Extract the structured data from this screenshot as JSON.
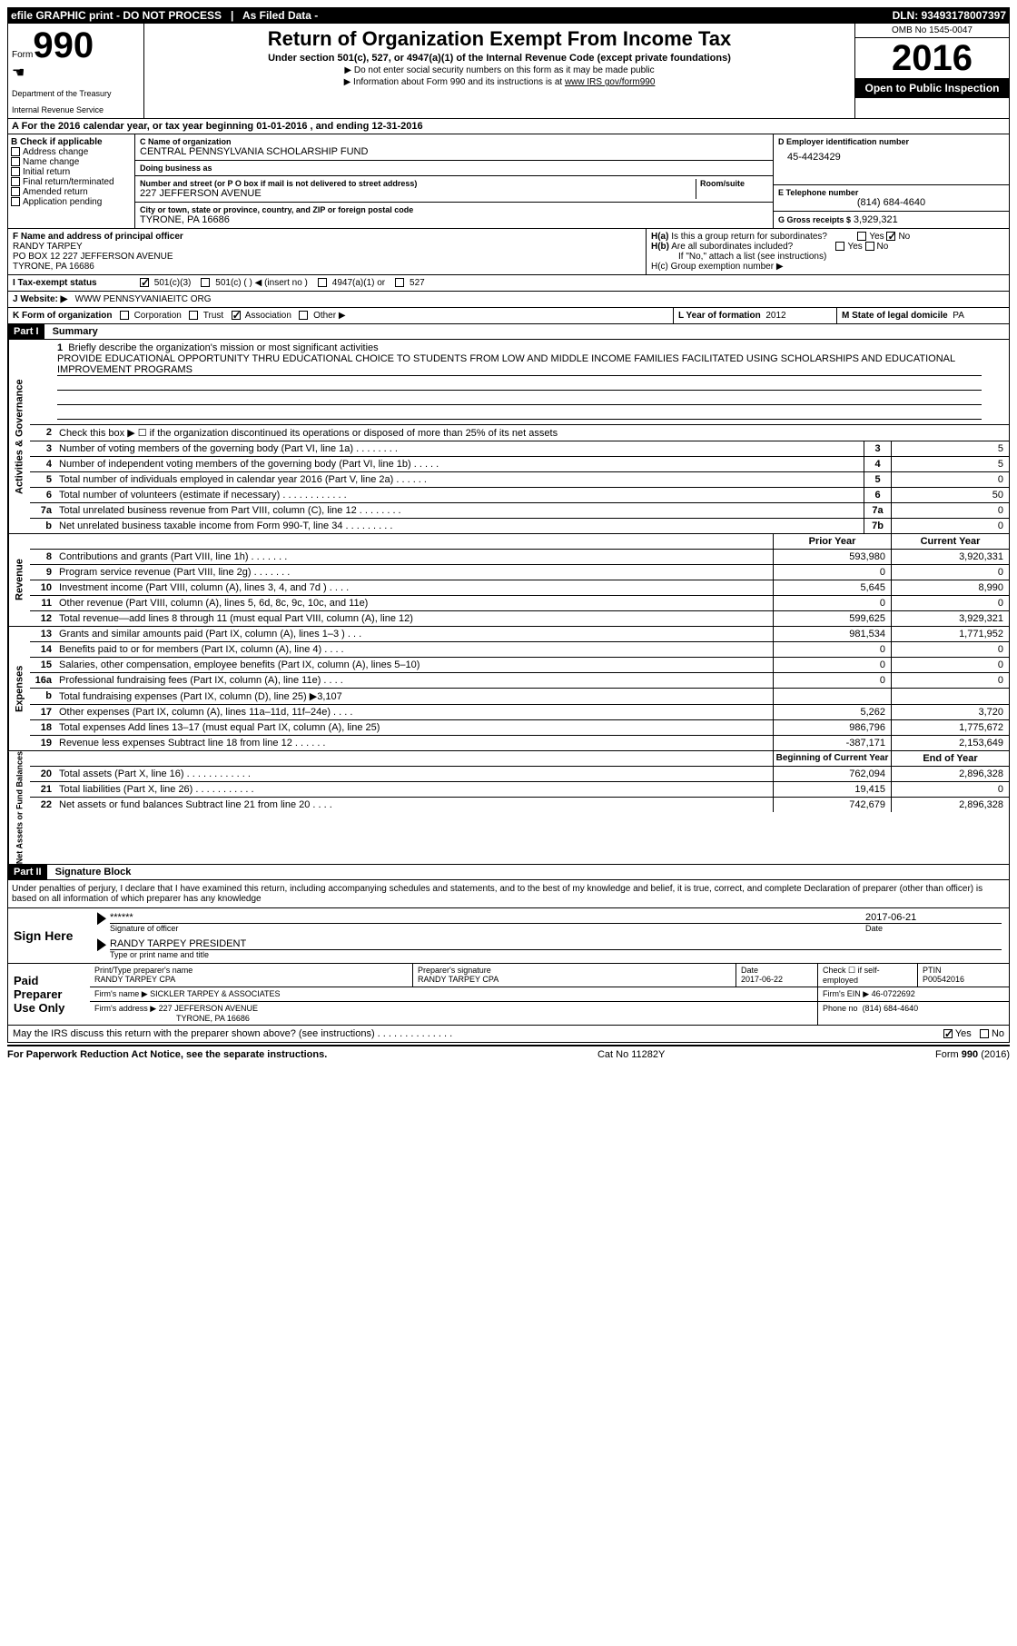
{
  "topbar": {
    "efile": "efile GRAPHIC print - DO NOT PROCESS",
    "asfiled": "As Filed Data -",
    "dln": "DLN: 93493178007397"
  },
  "header": {
    "form_word": "Form",
    "form_num": "990",
    "dept1": "Department of the Treasury",
    "dept2": "Internal Revenue Service",
    "title": "Return of Organization Exempt From Income Tax",
    "subtitle": "Under section 501(c), 527, or 4947(a)(1) of the Internal Revenue Code (except private foundations)",
    "note1": "▶ Do not enter social security numbers on this form as it may be made public",
    "note2": "▶ Information about Form 990 and its instructions is at www IRS gov/form990",
    "omb": "OMB No  1545-0047",
    "year": "2016",
    "open": "Open to Public Inspection"
  },
  "section_a": "A  For the 2016 calendar year, or tax year beginning 01-01-2016   , and ending 12-31-2016",
  "section_b": {
    "title": "B Check if applicable",
    "items": [
      "Address change",
      "Name change",
      "Initial return",
      "Final return/terminated",
      "Amended return",
      "Application pending"
    ]
  },
  "section_c": {
    "name_lbl": "C Name of organization",
    "name": "CENTRAL PENNSYLVANIA SCHOLARSHIP FUND",
    "dba_lbl": "Doing business as",
    "dba": "",
    "street_lbl": "Number and street (or P O  box if mail is not delivered to street address)",
    "room_lbl": "Room/suite",
    "street": "227 JEFFERSON AVENUE",
    "city_lbl": "City or town, state or province, country, and ZIP or foreign postal code",
    "city": "TYRONE, PA  16686"
  },
  "section_d": {
    "lbl": "D Employer identification number",
    "val": "45-4423429"
  },
  "section_e": {
    "lbl": "E Telephone number",
    "val": "(814) 684-4640"
  },
  "section_g": {
    "lbl": "G Gross receipts $",
    "val": "3,929,321"
  },
  "section_f": {
    "lbl": "F  Name and address of principal officer",
    "name": "RANDY TARPEY",
    "addr1": "PO BOX 12 227 JEFFERSON AVENUE",
    "addr2": "TYRONE, PA  16686"
  },
  "section_h": {
    "ha": "H(a)  Is this a group return for subordinates?",
    "hb": "H(b)  Are all subordinates included?",
    "hb_note": "If \"No,\" attach a list  (see instructions)",
    "hc": "H(c)  Group exemption number ▶"
  },
  "section_i": {
    "lbl": "I  Tax-exempt status",
    "opts": [
      "501(c)(3)",
      "501(c) (  ) ◀ (insert no )",
      "4947(a)(1) or",
      "527"
    ]
  },
  "section_j": {
    "lbl": "J  Website: ▶",
    "val": "WWW PENNSYVANIAEITC ORG"
  },
  "section_k": {
    "lbl": "K Form of organization",
    "opts": [
      "Corporation",
      "Trust",
      "Association",
      "Other ▶"
    ],
    "checked_idx": 2
  },
  "section_l": {
    "lbl": "L Year of formation",
    "val": "2012"
  },
  "section_m": {
    "lbl": "M State of legal domicile",
    "val": "PA"
  },
  "part1": {
    "title": "Part I",
    "subtitle": "Summary",
    "mission_lbl": "1  Briefly describe the organization's mission or most significant activities",
    "mission": "PROVIDE EDUCATIONAL OPPORTUNITY THRU EDUCATIONAL CHOICE TO STUDENTS FROM LOW AND MIDDLE INCOME FAMILIES FACILITATED USING SCHOLARSHIPS AND EDUCATIONAL IMPROVEMENT PROGRAMS",
    "line2": "Check this box ▶ ☐  if the organization discontinued its operations or disposed of more than 25% of its net assets",
    "gov_lines": [
      {
        "n": "3",
        "d": "Number of voting members of the governing body (Part VI, line 1a)  .  .  .  .  .  .  .  .",
        "b": "3",
        "v": "5"
      },
      {
        "n": "4",
        "d": "Number of independent voting members of the governing body (Part VI, line 1b)  .  .  .  .  .",
        "b": "4",
        "v": "5"
      },
      {
        "n": "5",
        "d": "Total number of individuals employed in calendar year 2016 (Part V, line 2a)  .  .  .  .  .  .",
        "b": "5",
        "v": "0"
      },
      {
        "n": "6",
        "d": "Total number of volunteers (estimate if necessary)  .  .  .  .  .  .  .  .  .  .  .  .",
        "b": "6",
        "v": "50"
      },
      {
        "n": "7a",
        "d": "Total unrelated business revenue from Part VIII, column (C), line 12  .  .  .  .  .  .  .  .",
        "b": "7a",
        "v": "0"
      },
      {
        "n": "b",
        "d": "Net unrelated business taxable income from Form 990-T, line 34  .  .  .  .  .  .  .  .  .",
        "b": "7b",
        "v": "0"
      }
    ],
    "rev_header": {
      "prior": "Prior Year",
      "current": "Current Year"
    },
    "rev_lines": [
      {
        "n": "8",
        "d": "Contributions and grants (Part VIII, line 1h)  .  .  .  .  .  .  .",
        "p": "593,980",
        "c": "3,920,331"
      },
      {
        "n": "9",
        "d": "Program service revenue (Part VIII, line 2g)  .  .  .  .  .  .  .",
        "p": "0",
        "c": "0"
      },
      {
        "n": "10",
        "d": "Investment income (Part VIII, column (A), lines 3, 4, and 7d )  .  .  .  .",
        "p": "5,645",
        "c": "8,990"
      },
      {
        "n": "11",
        "d": "Other revenue (Part VIII, column (A), lines 5, 6d, 8c, 9c, 10c, and 11e)",
        "p": "0",
        "c": "0"
      },
      {
        "n": "12",
        "d": "Total revenue—add lines 8 through 11 (must equal Part VIII, column (A), line 12)",
        "p": "599,625",
        "c": "3,929,321"
      }
    ],
    "exp_lines": [
      {
        "n": "13",
        "d": "Grants and similar amounts paid (Part IX, column (A), lines 1–3 )  .  .  .",
        "p": "981,534",
        "c": "1,771,952"
      },
      {
        "n": "14",
        "d": "Benefits paid to or for members (Part IX, column (A), line 4)  .  .  .  .",
        "p": "0",
        "c": "0"
      },
      {
        "n": "15",
        "d": "Salaries, other compensation, employee benefits (Part IX, column (A), lines 5–10)",
        "p": "0",
        "c": "0"
      },
      {
        "n": "16a",
        "d": "Professional fundraising fees (Part IX, column (A), line 11e)  .  .  .  .",
        "p": "0",
        "c": "0"
      },
      {
        "n": "b",
        "d": "Total fundraising expenses (Part IX, column (D), line 25) ▶3,107",
        "p": "",
        "c": ""
      },
      {
        "n": "17",
        "d": "Other expenses (Part IX, column (A), lines 11a–11d, 11f–24e)  .  .  .  .",
        "p": "5,262",
        "c": "3,720"
      },
      {
        "n": "18",
        "d": "Total expenses  Add lines 13–17 (must equal Part IX, column (A), line 25)",
        "p": "986,796",
        "c": "1,775,672"
      },
      {
        "n": "19",
        "d": "Revenue less expenses  Subtract line 18 from line 12  .  .  .  .  .  .",
        "p": "-387,171",
        "c": "2,153,649"
      }
    ],
    "na_header": {
      "prior": "Beginning of Current Year",
      "current": "End of Year"
    },
    "na_lines": [
      {
        "n": "20",
        "d": "Total assets (Part X, line 16)  .  .  .  .  .  .  .  .  .  .  .  .",
        "p": "762,094",
        "c": "2,896,328"
      },
      {
        "n": "21",
        "d": "Total liabilities (Part X, line 26)  .  .  .  .  .  .  .  .  .  .  .",
        "p": "19,415",
        "c": "0"
      },
      {
        "n": "22",
        "d": "Net assets or fund balances  Subtract line 21 from line 20  .  .  .  .",
        "p": "742,679",
        "c": "2,896,328"
      }
    ],
    "rot_gov": "Activities & Governance",
    "rot_rev": "Revenue",
    "rot_exp": "Expenses",
    "rot_na": "Net Assets or Fund Balances"
  },
  "part2": {
    "title": "Part II",
    "subtitle": "Signature Block",
    "decl": "Under penalties of perjury, I declare that I have examined this return, including accompanying schedules and statements, and to the best of my knowledge and belief, it is true, correct, and complete  Declaration of preparer (other than officer) is based on all information of which preparer has any knowledge",
    "sign_here": "Sign Here",
    "sig_stars": "******",
    "sig_date": "2017-06-21",
    "sig_lbl": "Signature of officer",
    "date_lbl": "Date",
    "officer": "RANDY TARPEY PRESIDENT",
    "officer_lbl": "Type or print name and title",
    "paid": "Paid Preparer Use Only",
    "prep_name_lbl": "Print/Type preparer's name",
    "prep_name": "RANDY TARPEY CPA",
    "prep_sig_lbl": "Preparer's signature",
    "prep_sig": "RANDY TARPEY CPA",
    "prep_date_lbl": "Date",
    "prep_date": "2017-06-22",
    "self_emp": "Check ☐ if self-employed",
    "ptin_lbl": "PTIN",
    "ptin": "P00542016",
    "firm_name_lbl": "Firm's name  ▶",
    "firm_name": "SICKLER TARPEY & ASSOCIATES",
    "firm_ein_lbl": "Firm's EIN ▶",
    "firm_ein": "46-0722692",
    "firm_addr_lbl": "Firm's address ▶",
    "firm_addr": "227 JEFFERSON AVENUE",
    "firm_city": "TYRONE, PA  16686",
    "phone_lbl": "Phone no",
    "phone": "(814) 684-4640",
    "discuss": "May the IRS discuss this return with the preparer shown above? (see instructions)  .  .  .  .  .  .  .  .  .  .  .  .  .  ."
  },
  "footer": {
    "left": "For Paperwork Reduction Act Notice, see the separate instructions.",
    "mid": "Cat No 11282Y",
    "right": "Form 990 (2016)"
  }
}
